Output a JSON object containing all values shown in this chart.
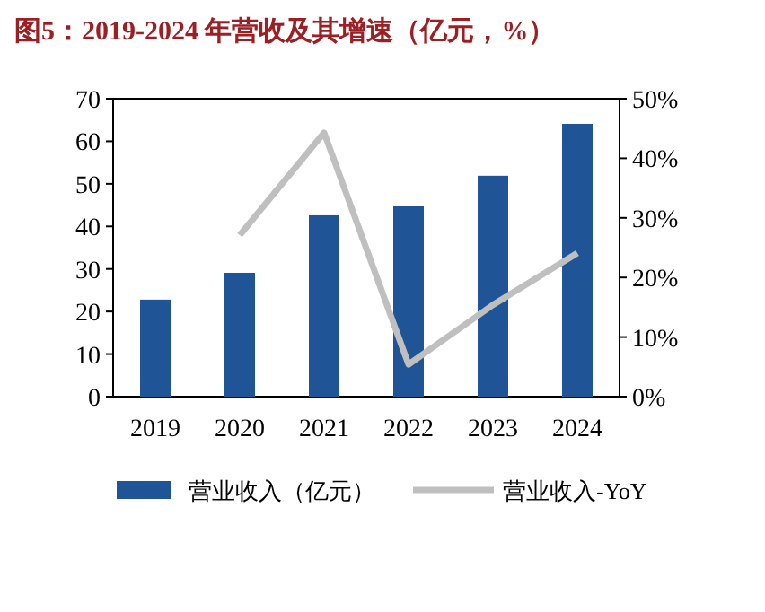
{
  "chart_data": {
    "type": "bar",
    "title": "图5：2019-2024 年营收及其增速（亿元，%）",
    "categories": [
      "2019",
      "2020",
      "2021",
      "2022",
      "2023",
      "2024"
    ],
    "series": [
      {
        "name": "营业收入（亿元）",
        "color": "#1f5597",
        "values": [
          22.8,
          29.1,
          42.6,
          44.7,
          51.9,
          64.1
        ]
      },
      {
        "name": "营业收入-YoY",
        "type": "line",
        "axis": "y2",
        "color": "#bfbfbf",
        "values": [
          null,
          27.1,
          44.3,
          5.4,
          15.4,
          24.1
        ]
      }
    ],
    "ylim": [
      0,
      70
    ],
    "yticks": [
      0,
      10,
      20,
      30,
      40,
      50,
      60,
      70
    ],
    "y2lim": [
      0,
      50
    ],
    "y2ticks": [
      {
        "value": 0,
        "label": "0%"
      },
      {
        "value": 10,
        "label": "10%"
      },
      {
        "value": 20,
        "label": "20%"
      },
      {
        "value": 30,
        "label": "30%"
      },
      {
        "value": 40,
        "label": "40%"
      },
      {
        "value": 50,
        "label": "50%"
      }
    ],
    "grid": false,
    "legend": "bottom"
  }
}
